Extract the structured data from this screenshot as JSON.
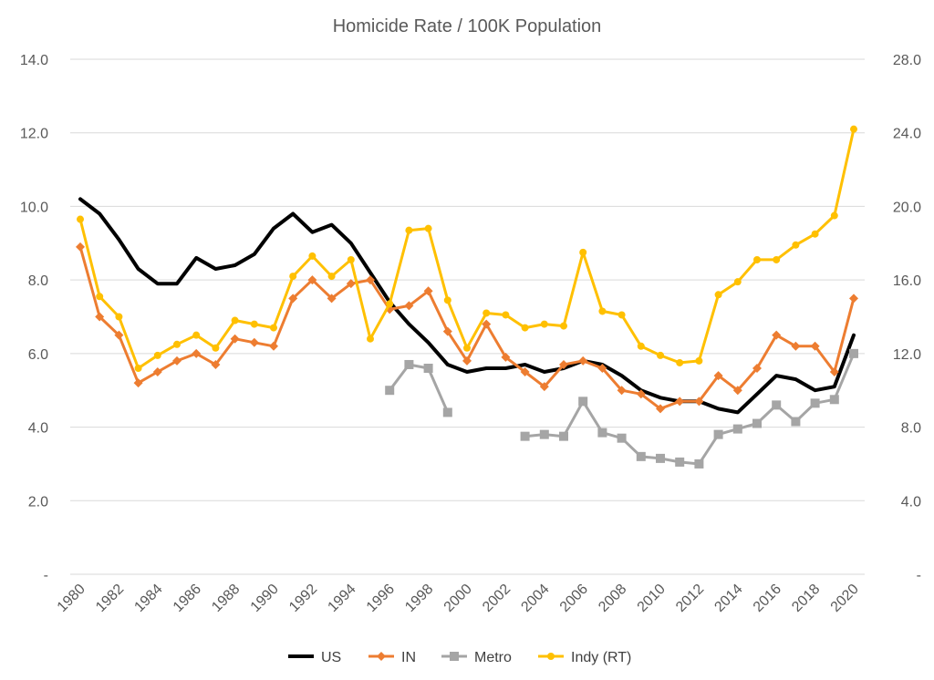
{
  "chart_data": {
    "type": "line",
    "title": "Homicide Rate / 100K Population",
    "xlabel": "",
    "ylabel": "",
    "x": [
      1980,
      1981,
      1982,
      1983,
      1984,
      1985,
      1986,
      1987,
      1988,
      1989,
      1990,
      1991,
      1992,
      1993,
      1994,
      1995,
      1996,
      1997,
      1998,
      1999,
      2000,
      2001,
      2002,
      2003,
      2004,
      2005,
      2006,
      2007,
      2008,
      2009,
      2010,
      2011,
      2012,
      2013,
      2014,
      2015,
      2016,
      2017,
      2018,
      2019,
      2020
    ],
    "x_tick_labels": [
      "1980",
      "1982",
      "1984",
      "1986",
      "1988",
      "1990",
      "1992",
      "1994",
      "1996",
      "1998",
      "2000",
      "2002",
      "2004",
      "2006",
      "2008",
      "2010",
      "2012",
      "2014",
      "2016",
      "2018",
      "2020"
    ],
    "ylim": [
      0,
      14
    ],
    "y_tick_labels": [
      "-",
      "2.0",
      "4.0",
      "6.0",
      "8.0",
      "10.0",
      "12.0",
      "14.0"
    ],
    "y2lim": [
      0,
      28
    ],
    "y2_tick_labels": [
      "-",
      "4.0",
      "8.0",
      "12.0",
      "16.0",
      "20.0",
      "24.0",
      "28.0"
    ],
    "grid": true,
    "legend_position": "bottom",
    "series": [
      {
        "name": "US",
        "axis": "left",
        "color": "#000000",
        "marker": "none",
        "values": [
          10.2,
          9.8,
          9.1,
          8.3,
          7.9,
          7.9,
          8.6,
          8.3,
          8.4,
          8.7,
          9.4,
          9.8,
          9.3,
          9.5,
          9.0,
          8.2,
          7.4,
          6.8,
          6.3,
          5.7,
          5.5,
          5.6,
          5.6,
          5.7,
          5.5,
          5.6,
          5.8,
          5.7,
          5.4,
          5.0,
          4.8,
          4.7,
          4.7,
          4.5,
          4.4,
          4.9,
          5.4,
          5.3,
          5.0,
          5.1,
          6.5
        ]
      },
      {
        "name": "IN",
        "axis": "left",
        "color": "#ED7D31",
        "marker": "diamond",
        "values": [
          8.9,
          7.0,
          6.5,
          5.2,
          5.5,
          5.8,
          6.0,
          5.7,
          6.4,
          6.3,
          6.2,
          7.5,
          8.0,
          7.5,
          7.9,
          8.0,
          7.2,
          7.3,
          7.7,
          6.6,
          5.8,
          6.8,
          5.9,
          5.5,
          5.1,
          5.7,
          5.8,
          5.6,
          5.0,
          4.9,
          4.5,
          4.7,
          4.7,
          5.4,
          5.0,
          5.6,
          6.5,
          6.2,
          6.2,
          5.5,
          7.5
        ]
      },
      {
        "name": "Metro",
        "axis": "left",
        "color": "#A5A5A5",
        "marker": "square",
        "values": [
          null,
          null,
          null,
          null,
          null,
          null,
          null,
          null,
          null,
          null,
          null,
          null,
          null,
          null,
          null,
          null,
          5.0,
          5.7,
          5.6,
          4.4,
          null,
          null,
          null,
          3.75,
          3.8,
          3.75,
          4.7,
          3.85,
          3.7,
          3.2,
          3.15,
          3.05,
          3.0,
          3.8,
          3.95,
          4.1,
          4.6,
          4.15,
          4.65,
          4.75,
          6.0
        ]
      },
      {
        "name": "Indy (RT)",
        "axis": "right",
        "color": "#FFC000",
        "marker": "circle",
        "values": [
          19.3,
          15.1,
          14.0,
          11.2,
          11.9,
          12.5,
          13.0,
          12.3,
          13.8,
          13.6,
          13.4,
          16.2,
          17.3,
          16.2,
          17.1,
          12.8,
          14.7,
          18.7,
          18.8,
          14.9,
          12.3,
          14.2,
          14.1,
          13.4,
          13.6,
          13.5,
          17.5,
          14.3,
          14.1,
          12.4,
          11.9,
          11.5,
          11.6,
          15.2,
          15.9,
          17.1,
          17.1,
          17.9,
          18.5,
          19.5,
          24.2
        ]
      }
    ]
  }
}
